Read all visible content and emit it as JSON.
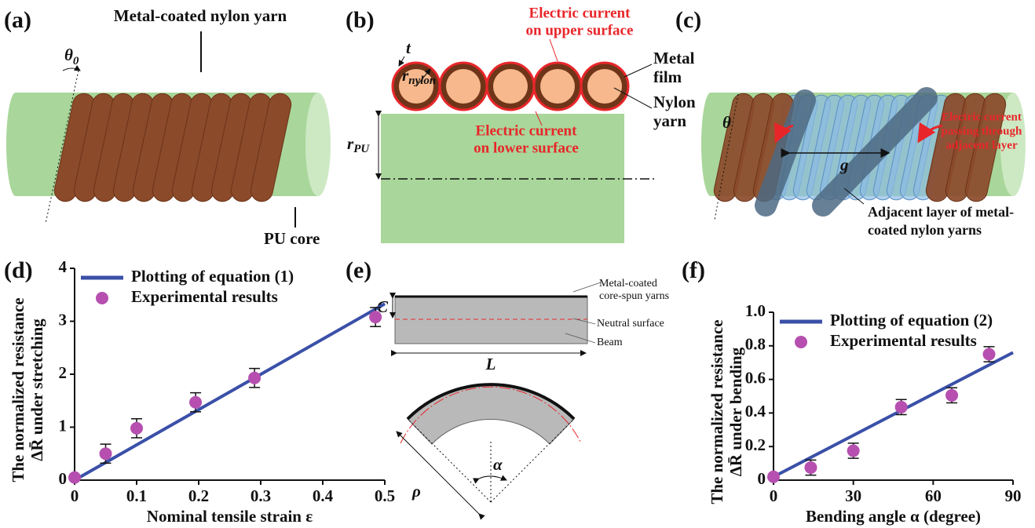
{
  "panels": {
    "a": {
      "label": "(a)",
      "yarn_label": "Metal-coated nylon yarn",
      "angle_symbol": "θ",
      "angle_subscript": "0",
      "core_label": "PU core"
    },
    "b": {
      "label": "(b)",
      "upper_current": [
        "Electric current",
        "on upper surface"
      ],
      "lower_current": [
        "Electric current",
        "on lower surface"
      ],
      "film_label": [
        "Metal",
        "film"
      ],
      "yarn_label": [
        "Nylon",
        "yarn"
      ],
      "thickness": "t",
      "radius_symbol": "r",
      "radius_subscript": "nylon",
      "core_radius_symbol": "r",
      "core_radius_subscript": "PU"
    },
    "c": {
      "label": "(c)",
      "angle_symbol": "θ",
      "gap_symbol": "g",
      "current_label": [
        "Electric current",
        "passing through",
        "adjacent layer"
      ],
      "layer_label": [
        "Adjacent layer of metal-",
        "coated nylon yarns"
      ]
    },
    "e": {
      "label": "(e)",
      "yarns_label": [
        "Metal-coated",
        "core-spun yarns"
      ],
      "neutral_label": "Neutral surface",
      "beam_label": "Beam",
      "offset_symbol": "C",
      "length_symbol": "L",
      "radius_symbol": "ρ",
      "angle_symbol": "α"
    }
  },
  "chart_data": [
    {
      "type": "scatter",
      "panel_label": "(d)",
      "xlabel": "Nominal tensile strain ε",
      "ylabel": [
        "The normalized resistance",
        "ΔR̄ under stretching"
      ],
      "xlim": [
        0,
        0.5
      ],
      "ylim": [
        0,
        4
      ],
      "xticks": [
        0,
        0.1,
        0.2,
        0.3,
        0.4,
        0.5
      ],
      "yticks": [
        0,
        1,
        2,
        3,
        4
      ],
      "series": [
        {
          "name": "Plotting of equation (1)",
          "kind": "line",
          "color": "#3a50a8",
          "x": [
            0,
            0.5
          ],
          "values": [
            0,
            3.33
          ]
        },
        {
          "name": "Experimental results",
          "kind": "points",
          "color": "#b64fb0",
          "x": [
            0,
            0.05,
            0.1,
            0.195,
            0.29,
            0.485
          ],
          "values": [
            0.05,
            0.5,
            0.98,
            1.47,
            1.93,
            3.08
          ],
          "errors": [
            null,
            0.18,
            0.18,
            0.18,
            0.18,
            0.18
          ]
        }
      ]
    },
    {
      "type": "scatter",
      "panel_label": "(f)",
      "xlabel": "Bending angle α (degree)",
      "ylabel": [
        "The normalized resistance",
        "ΔR̄ under bending"
      ],
      "xlim": [
        0,
        90
      ],
      "ylim": [
        0,
        1
      ],
      "xticks": [
        0,
        30,
        60,
        90
      ],
      "yticks": [
        0,
        0.2,
        0.4,
        0.6,
        0.8,
        {
          "value": 1,
          "label": "1.0"
        }
      ],
      "series": [
        {
          "name": "Plotting of equation (2)",
          "kind": "line",
          "color": "#3a50a8",
          "x": [
            0,
            90
          ],
          "values": [
            0.02,
            0.76
          ]
        },
        {
          "name": "Experimental results",
          "kind": "points",
          "color": "#b64fb0",
          "x": [
            0,
            14,
            30,
            48,
            67,
            81
          ],
          "values": [
            0.02,
            0.075,
            0.175,
            0.435,
            0.505,
            0.75
          ],
          "errors": [
            null,
            0.045,
            0.045,
            0.045,
            0.045,
            0.045
          ]
        }
      ]
    }
  ]
}
